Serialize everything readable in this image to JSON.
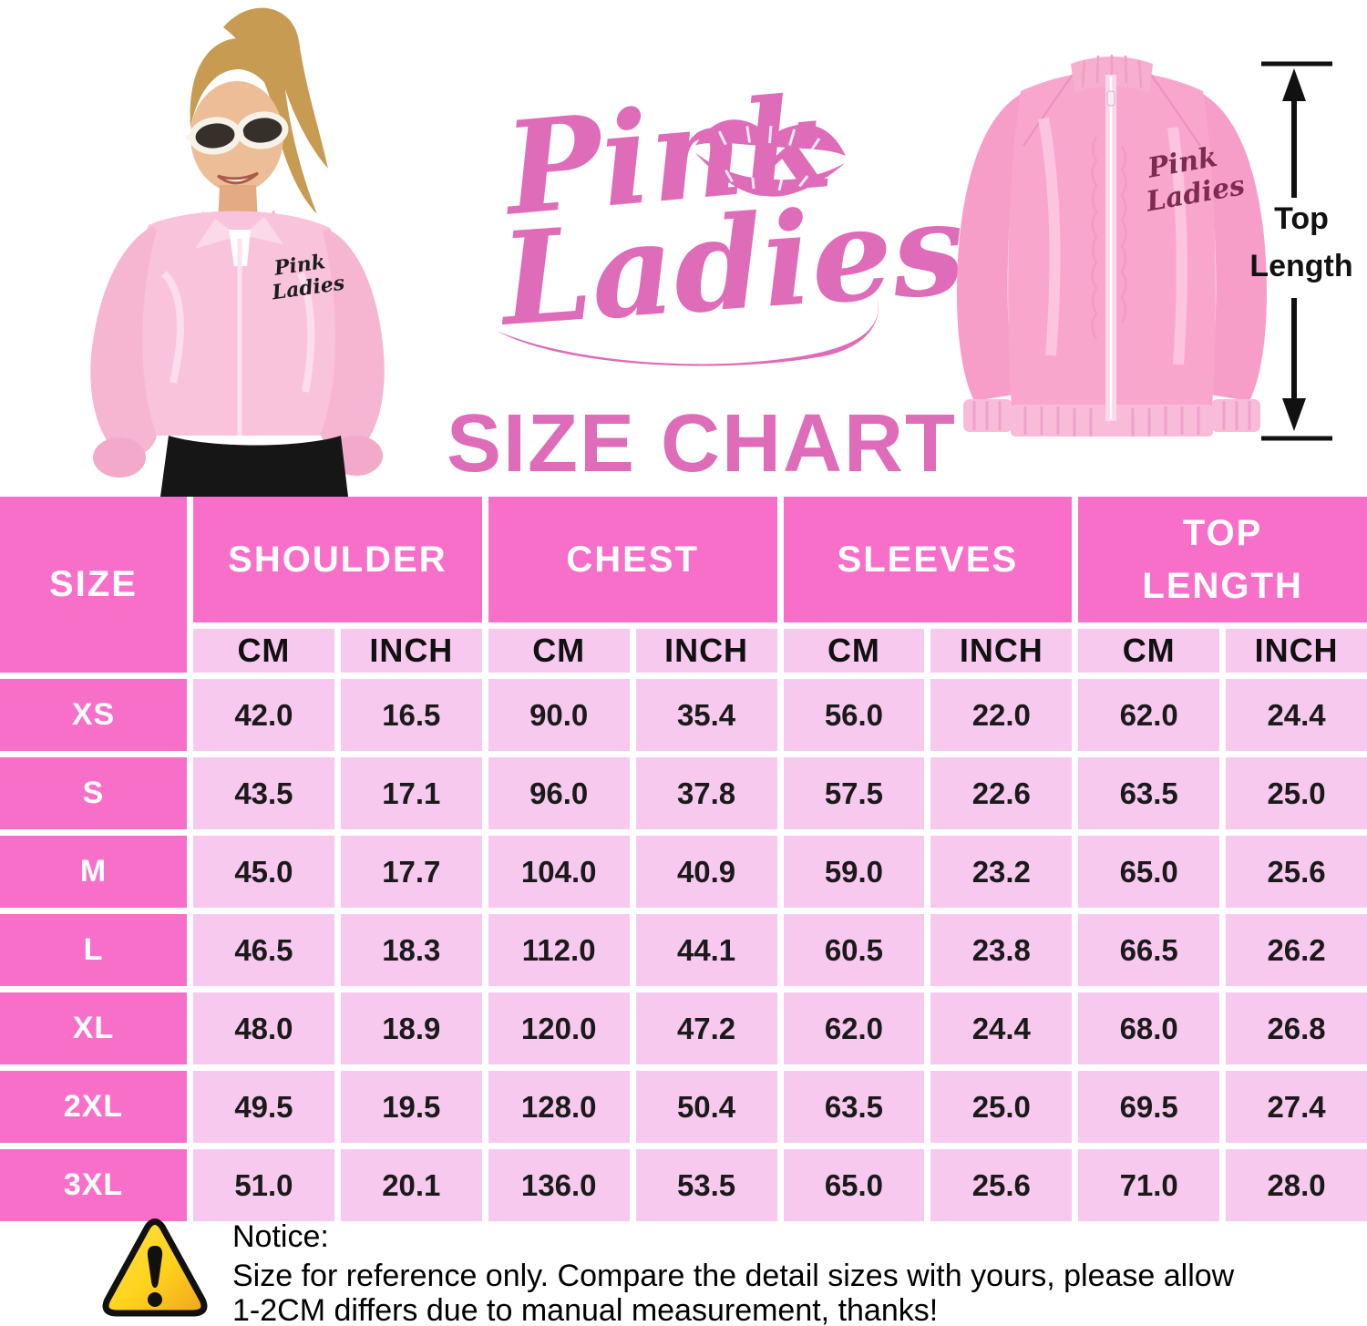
{
  "logo": {
    "word1": "Pink",
    "word2": "Ladies",
    "lips_icon": "lips-kiss-icon",
    "color": "#de6cb8"
  },
  "title": "SIZE CHART",
  "measure_annotation": {
    "word1": "Top",
    "word2": "Length"
  },
  "model_photo": {
    "jacket_text_line1": "Pink",
    "jacket_text_line2": "Ladies"
  },
  "jacket_photo": {
    "jacket_text_line1": "Pink",
    "jacket_text_line2": "Ladies"
  },
  "size_table": {
    "corner_header": "SIZE",
    "group_headers": [
      "SHOULDER",
      "CHEST",
      "SLEEVES",
      "TOP LENGTH"
    ],
    "unit_headers": [
      "CM",
      "INCH",
      "CM",
      "INCH",
      "CM",
      "INCH",
      "CM",
      "INCH"
    ],
    "rows": [
      {
        "size": "XS",
        "values": [
          "42.0",
          "16.5",
          "90.0",
          "35.4",
          "56.0",
          "22.0",
          "62.0",
          "24.4"
        ]
      },
      {
        "size": "S",
        "values": [
          "43.5",
          "17.1",
          "96.0",
          "37.8",
          "57.5",
          "22.6",
          "63.5",
          "25.0"
        ]
      },
      {
        "size": "M",
        "values": [
          "45.0",
          "17.7",
          "104.0",
          "40.9",
          "59.0",
          "23.2",
          "65.0",
          "25.6"
        ]
      },
      {
        "size": "L",
        "values": [
          "46.5",
          "18.3",
          "112.0",
          "44.1",
          "60.5",
          "23.8",
          "66.5",
          "26.2"
        ]
      },
      {
        "size": "XL",
        "values": [
          "48.0",
          "18.9",
          "120.0",
          "47.2",
          "62.0",
          "24.4",
          "68.0",
          "26.8"
        ]
      },
      {
        "size": "2XL",
        "values": [
          "49.5",
          "19.5",
          "128.0",
          "50.4",
          "63.5",
          "25.0",
          "69.5",
          "27.4"
        ]
      },
      {
        "size": "3XL",
        "values": [
          "51.0",
          "20.1",
          "136.0",
          "53.5",
          "65.0",
          "25.6",
          "71.0",
          "28.0"
        ]
      }
    ]
  },
  "notice": {
    "label": "Notice:",
    "line1": "Size for reference only. Compare the detail sizes with yours, please allow",
    "line2": "1-2CM differs due to manual measurement, thanks!"
  },
  "colors": {
    "brand_pink": "#de6cb8",
    "table_header_pink": "#f76fc9",
    "table_cell_pink": "#f8c9ef",
    "jacket_pink": "#f9a6cd",
    "warning_yellow": "#ffd21c",
    "warning_orange": "#f0a51f"
  }
}
